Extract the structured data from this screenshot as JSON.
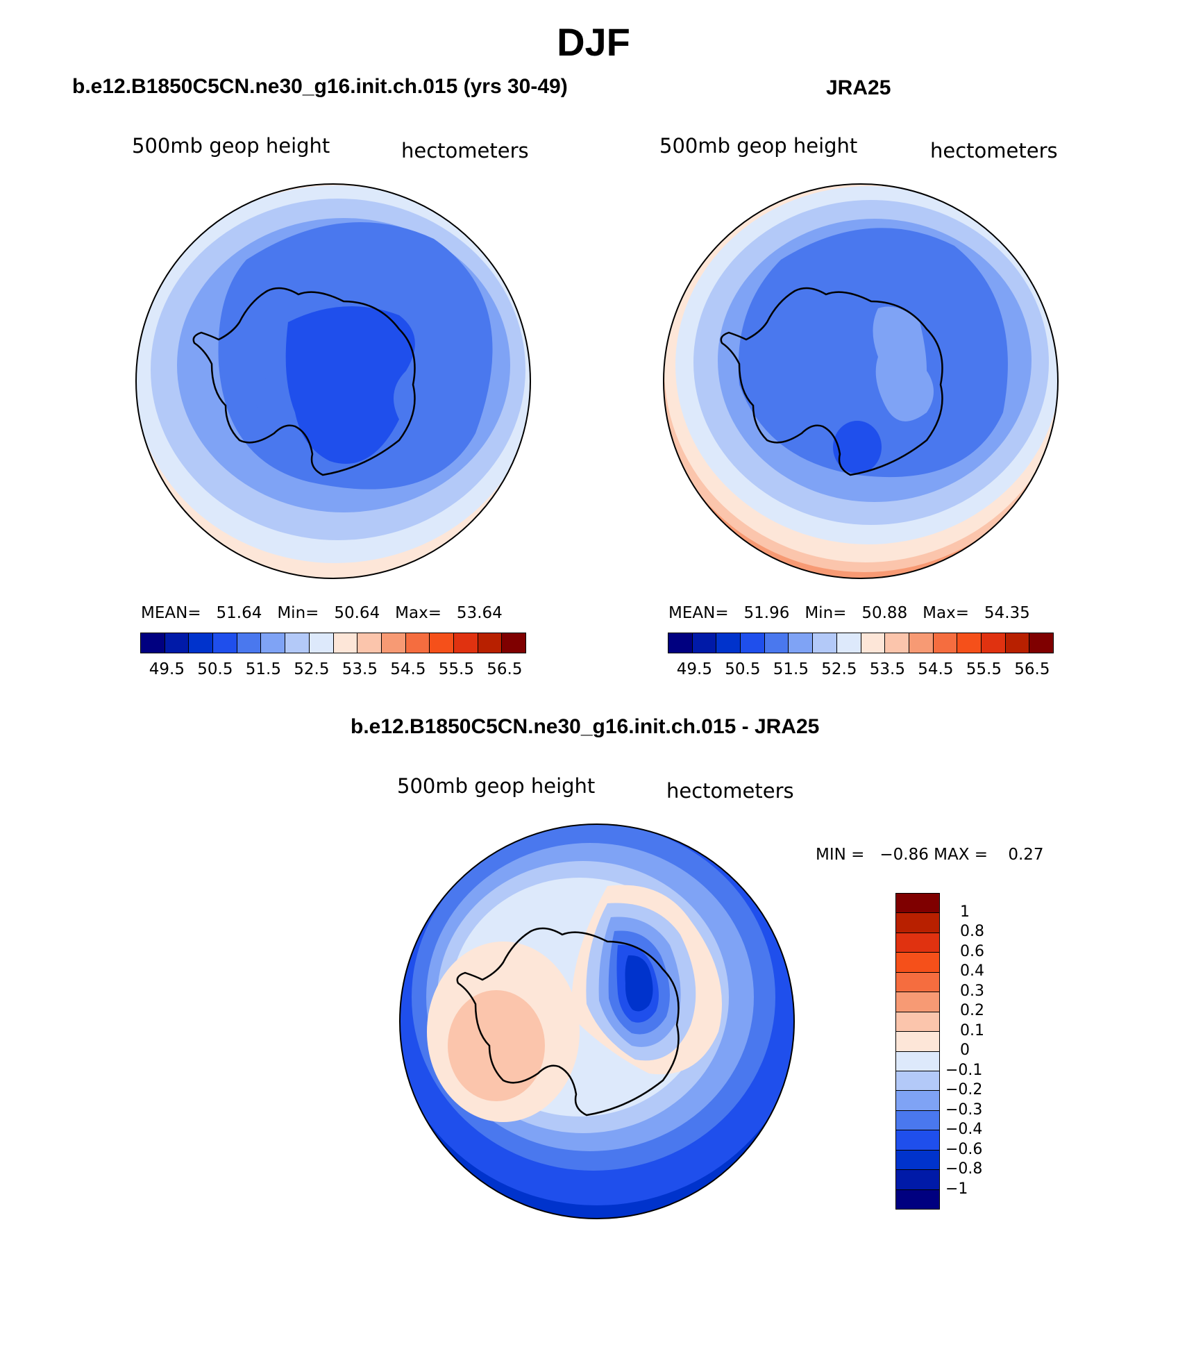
{
  "title": "DJF",
  "panels": [
    {
      "title": "b.e12.B1850C5CN.ne30_g16.init.ch.015 (yrs 30-49)",
      "variable": "500mb geop height",
      "units": "hectometers",
      "stats": {
        "mean_label": "MEAN=",
        "mean": "51.64",
        "min_label": "Min=",
        "min": "50.64",
        "max_label": "Max=",
        "max": "53.64"
      }
    },
    {
      "title": "JRA25",
      "variable": "500mb geop height",
      "units": "hectometers",
      "stats": {
        "mean_label": "MEAN=",
        "mean": "51.96",
        "min_label": "Min=",
        "min": "50.88",
        "max_label": "Max=",
        "max": "54.35"
      }
    },
    {
      "title": "b.e12.B1850C5CN.ne30_g16.init.ch.015 - JRA25",
      "variable": "500mb geop height",
      "units": "hectometers",
      "stats": {
        "min_label": "MIN =",
        "min": "−0.86",
        "max_label": "MAX =",
        "max": "0.27"
      }
    }
  ],
  "colorbar_abs": {
    "colors": [
      "#000080",
      "#001aa8",
      "#0033cc",
      "#1f4fec",
      "#4a78ee",
      "#7fa3f5",
      "#b3c9f8",
      "#dde9fb",
      "#fde6d8",
      "#fbc5ac",
      "#f79a74",
      "#f56d3f",
      "#f5501a",
      "#e03210",
      "#b82000",
      "#7f0000"
    ],
    "labels": [
      "49.5",
      "50.5",
      "51.5",
      "52.5",
      "53.5",
      "54.5",
      "55.5",
      "56.5"
    ]
  },
  "colorbar_diff": {
    "colors": [
      "#7f0000",
      "#b82000",
      "#e03210",
      "#f5501a",
      "#f56d3f",
      "#f79a74",
      "#fbc5ac",
      "#fde6d8",
      "#dde9fb",
      "#b3c9f8",
      "#7fa3f5",
      "#4a78ee",
      "#1f4fec",
      "#0033cc",
      "#001aa8",
      "#000080"
    ],
    "labels": [
      "1",
      "0.8",
      "0.6",
      "0.4",
      "0.3",
      "0.2",
      "0.1",
      "0",
      "−0.1",
      "−0.2",
      "−0.3",
      "−0.4",
      "−0.6",
      "−0.8",
      "−1"
    ]
  }
}
